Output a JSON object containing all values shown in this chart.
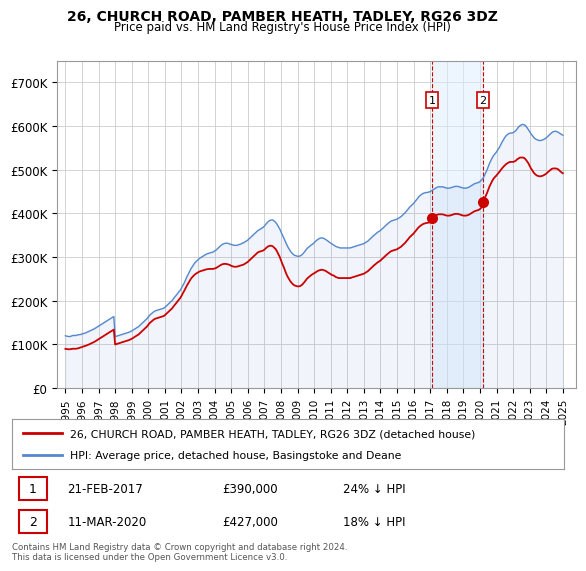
{
  "title": "26, CHURCH ROAD, PAMBER HEATH, TADLEY, RG26 3DZ",
  "subtitle": "Price paid vs. HM Land Registry's House Price Index (HPI)",
  "background_color": "#ffffff",
  "plot_bg_color": "#ffffff",
  "grid_color": "#cccccc",
  "hpi_color": "#5588cc",
  "hpi_fill_color": "#aabbdd",
  "price_color": "#cc0000",
  "annotation1_date": "21-FEB-2017",
  "annotation1_price": 390000,
  "annotation1_label": "24% ↓ HPI",
  "annotation2_date": "11-MAR-2020",
  "annotation2_price": 427000,
  "annotation2_label": "18% ↓ HPI",
  "legend_line1": "26, CHURCH ROAD, PAMBER HEATH, TADLEY, RG26 3DZ (detached house)",
  "legend_line2": "HPI: Average price, detached house, Basingstoke and Deane",
  "footer": "Contains HM Land Registry data © Crown copyright and database right 2024.\nThis data is licensed under the Open Government Licence v3.0.",
  "ylim": [
    0,
    750000
  ],
  "yticks": [
    0,
    100000,
    200000,
    300000,
    400000,
    500000,
    600000,
    700000
  ],
  "ytick_labels": [
    "£0",
    "£100K",
    "£200K",
    "£300K",
    "£400K",
    "£500K",
    "£600K",
    "£700K"
  ],
  "ann1_x": 2017.12,
  "ann1_y": 390000,
  "ann2_x": 2020.19,
  "ann2_y": 427000,
  "xtick_years": [
    1995,
    1996,
    1997,
    1998,
    1999,
    2000,
    2001,
    2002,
    2003,
    2004,
    2005,
    2006,
    2007,
    2008,
    2009,
    2010,
    2011,
    2012,
    2013,
    2014,
    2015,
    2016,
    2017,
    2018,
    2019,
    2020,
    2021,
    2022,
    2023,
    2024,
    2025
  ],
  "xlim": [
    1994.5,
    2025.8
  ]
}
